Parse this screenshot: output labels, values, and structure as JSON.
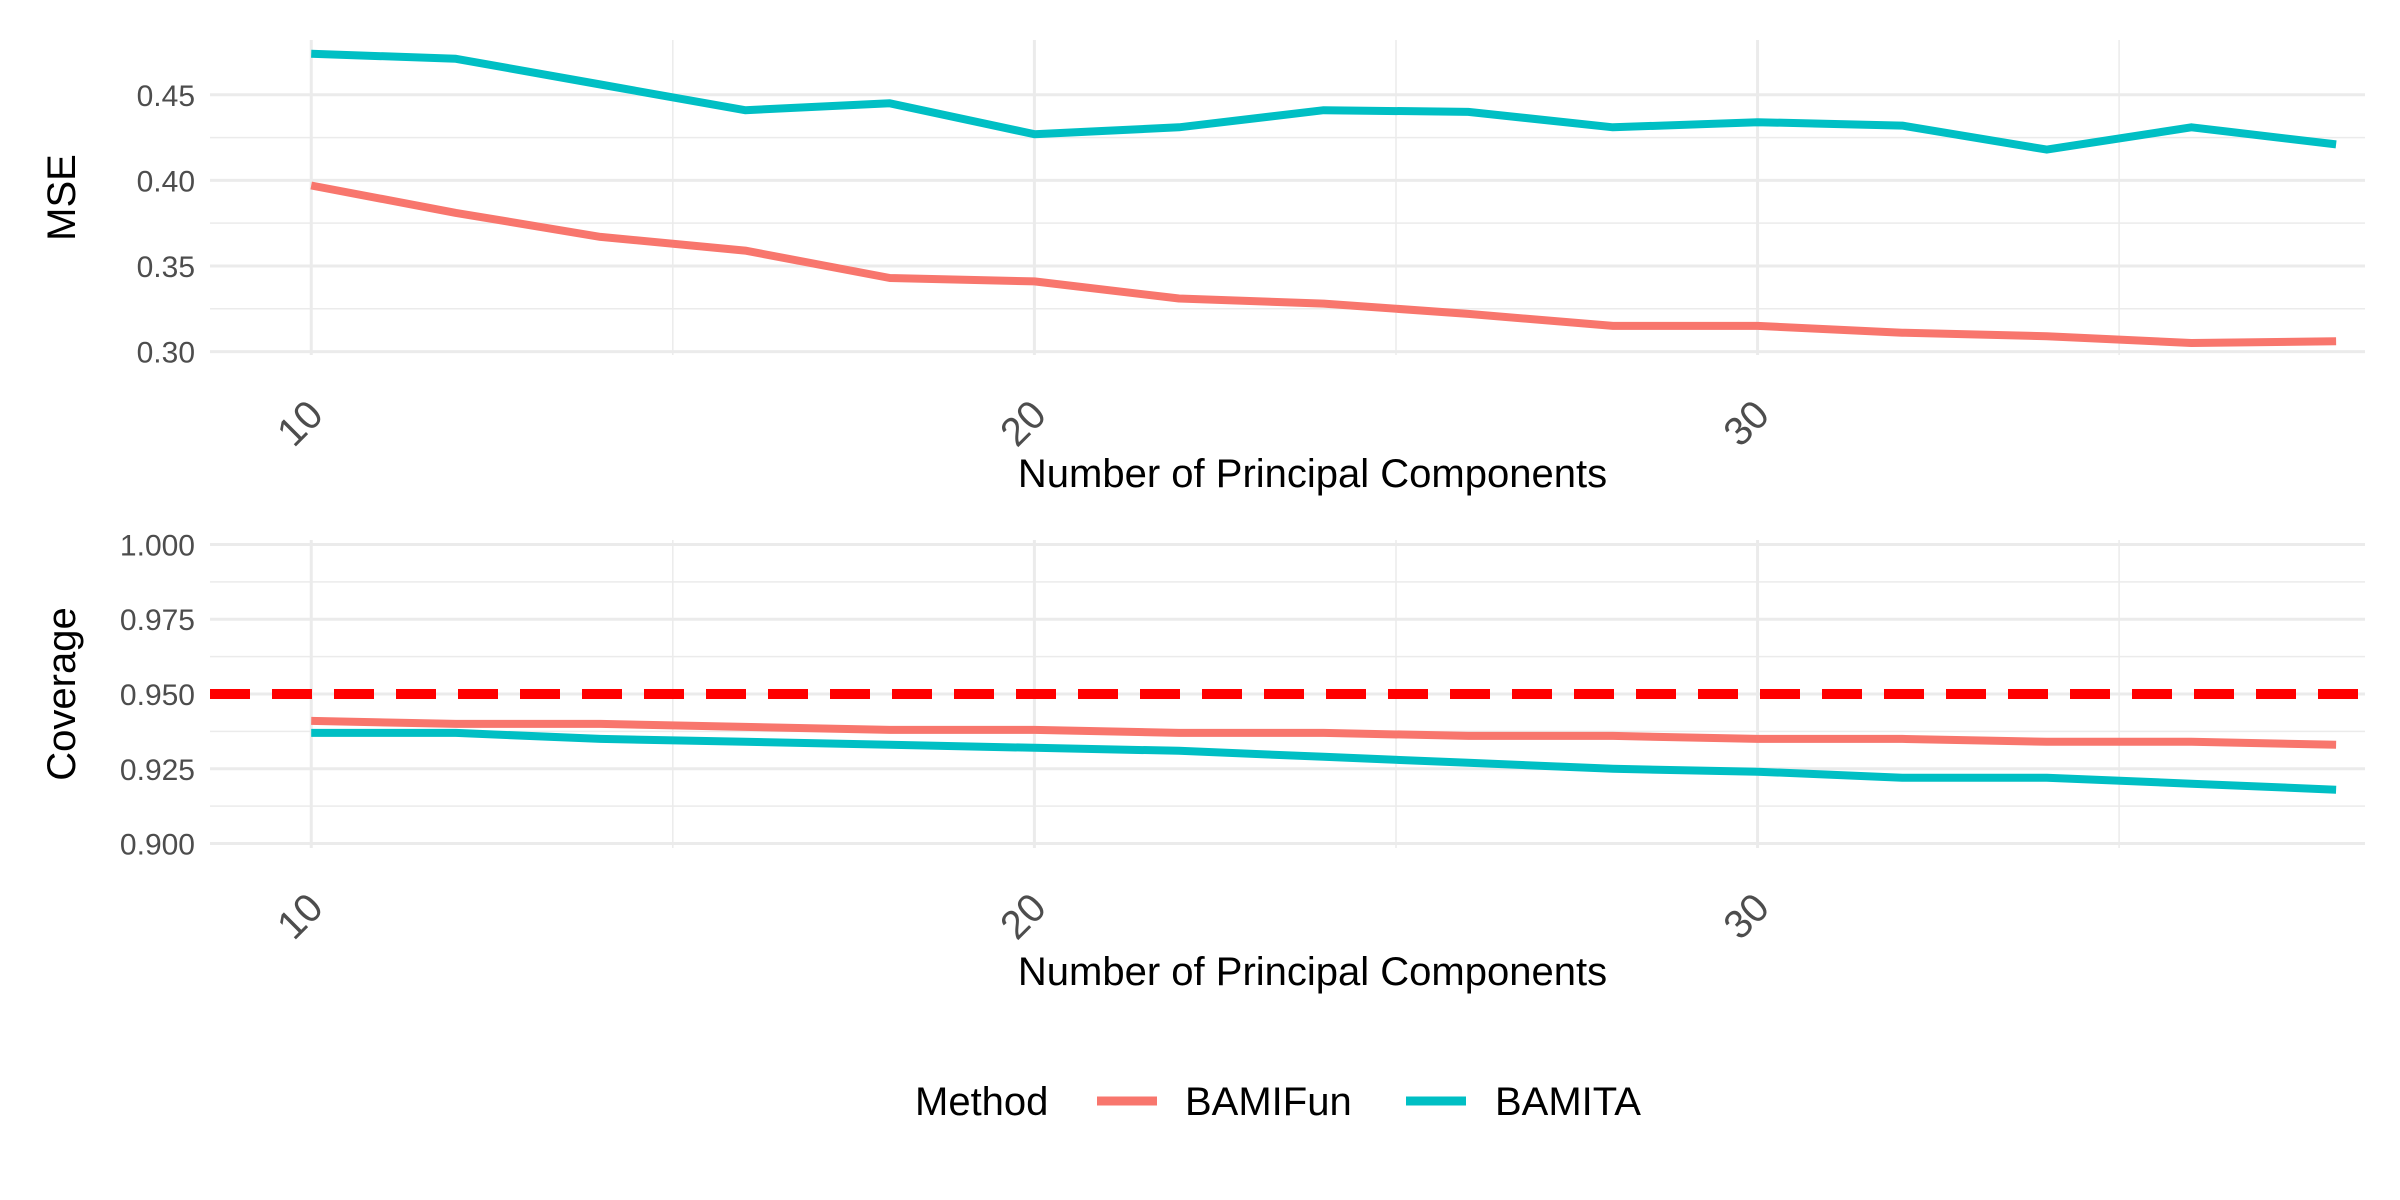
{
  "chart_data": [
    {
      "type": "line",
      "xlabel": "Number of Principal Components",
      "ylabel": "MSE",
      "xlim": [
        8.6,
        38.4
      ],
      "ylim": [
        0.298,
        0.482
      ],
      "x_ticks": [
        10,
        20,
        30
      ],
      "y_ticks": [
        0.3,
        0.35,
        0.4,
        0.45
      ],
      "y_tick_labels": [
        "0.30",
        "0.35",
        "0.40",
        "0.45"
      ],
      "grid": true,
      "series": [
        {
          "name": "BAMIFun",
          "color": "#F8766D",
          "x": [
            10,
            12,
            14,
            16,
            18,
            20,
            22,
            24,
            26,
            28,
            30,
            32,
            34,
            36,
            38
          ],
          "values": [
            0.397,
            0.381,
            0.367,
            0.359,
            0.343,
            0.341,
            0.331,
            0.328,
            0.322,
            0.315,
            0.315,
            0.311,
            0.309,
            0.305,
            0.306
          ]
        },
        {
          "name": "BAMITA",
          "color": "#00BFC4",
          "x": [
            10,
            12,
            14,
            16,
            18,
            20,
            22,
            24,
            26,
            28,
            30,
            32,
            34,
            36,
            38
          ],
          "values": [
            0.474,
            0.471,
            0.456,
            0.441,
            0.445,
            0.427,
            0.431,
            0.441,
            0.44,
            0.431,
            0.434,
            0.432,
            0.418,
            0.431,
            0.421
          ]
        }
      ]
    },
    {
      "type": "line",
      "xlabel": "Number of Principal Components",
      "ylabel": "Coverage",
      "xlim": [
        8.6,
        38.4
      ],
      "ylim": [
        0.8985,
        1.0015
      ],
      "x_ticks": [
        10,
        20,
        30
      ],
      "y_ticks": [
        0.9,
        0.925,
        0.95,
        0.975,
        1.0
      ],
      "y_tick_labels": [
        "0.900",
        "0.925",
        "0.950",
        "0.975",
        "1.000"
      ],
      "grid": true,
      "reference_line": {
        "y": 0.95,
        "color": "#FF0000",
        "style": "dashed"
      },
      "series": [
        {
          "name": "BAMIFun",
          "color": "#F8766D",
          "x": [
            10,
            12,
            14,
            16,
            18,
            20,
            22,
            24,
            26,
            28,
            30,
            32,
            34,
            36,
            38
          ],
          "values": [
            0.941,
            0.94,
            0.94,
            0.939,
            0.938,
            0.938,
            0.937,
            0.937,
            0.936,
            0.936,
            0.935,
            0.935,
            0.934,
            0.934,
            0.933
          ]
        },
        {
          "name": "BAMITA",
          "color": "#00BFC4",
          "x": [
            10,
            12,
            14,
            16,
            18,
            20,
            22,
            24,
            26,
            28,
            30,
            32,
            34,
            36,
            38
          ],
          "values": [
            0.937,
            0.937,
            0.935,
            0.934,
            0.933,
            0.932,
            0.931,
            0.929,
            0.927,
            0.925,
            0.924,
            0.922,
            0.922,
            0.92,
            0.918
          ]
        }
      ]
    }
  ],
  "legend": {
    "title": "Method",
    "position": "bottom",
    "items": [
      {
        "label": "BAMIFun",
        "color": "#F8766D"
      },
      {
        "label": "BAMITA",
        "color": "#00BFC4"
      }
    ]
  }
}
